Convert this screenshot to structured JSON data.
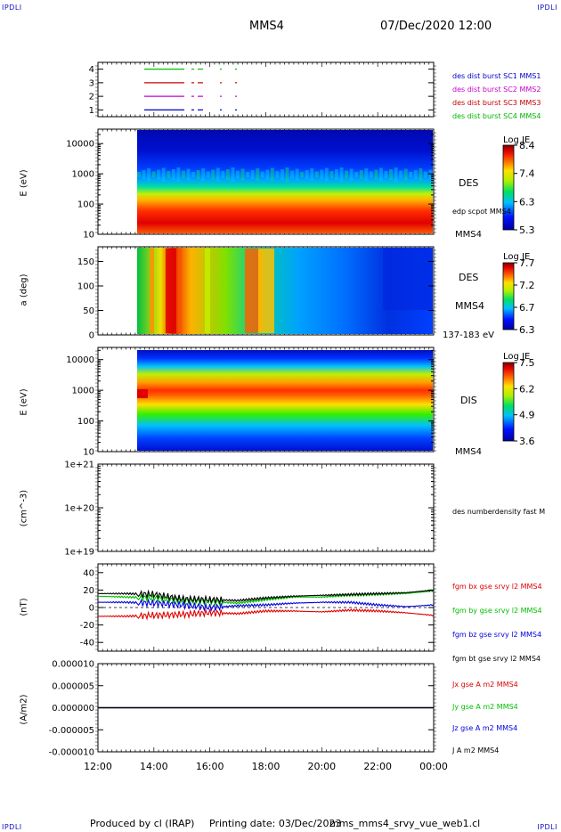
{
  "header": {
    "corner_tl": "IPDLI",
    "corner_tr": "IPDLI",
    "corner_bl": "IPDLI",
    "corner_br": "IPDLI",
    "spacecraft": "MMS4",
    "datetime": "07/Dec/2020 12:00"
  },
  "footer": {
    "producer": "Produced by cl (IRAP)",
    "printing": "Printing date: 03/Dec/2023",
    "script": "mms_mms4_srvy_vue_web1.cl"
  },
  "colors": {
    "mms1": "#0000c8",
    "mms2": "#c800c8",
    "mms3": "#c80000",
    "mms4": "#00b400",
    "bx": "#e00000",
    "by": "#00c000",
    "bz": "#0000e0",
    "bt": "#000000"
  },
  "chart_data": [
    {
      "type": "line",
      "panel": "burst",
      "ylim": [
        0.5,
        4.5
      ],
      "yticks": [
        "1",
        "2",
        "3",
        "4"
      ],
      "series": [
        {
          "name": "des dist burst SC1 MMS1",
          "level": 4,
          "color": "#00c000"
        },
        {
          "name": "des dist burst SC2 MMS2",
          "level": 3,
          "color": "#c80000"
        },
        {
          "name": "des dist burst SC3 MMS3",
          "level": 2,
          "color": "#c800c8"
        },
        {
          "name": "des dist burst SC4 MMS4",
          "level": 1,
          "color": "#0000c8"
        }
      ],
      "legend_colors": [
        "#0000c8",
        "#c800c8",
        "#c80000",
        "#00b400"
      ]
    },
    {
      "type": "heatmap",
      "panel": "des_energy",
      "ylabel": "E (eV)",
      "yscale": "log",
      "ylim": [
        10,
        30000
      ],
      "yticks": [
        "10",
        "100",
        "1000",
        "10000"
      ],
      "label": "DES",
      "side_label": "edp scpot MMS4",
      "bottom_label": "MMS4",
      "colorbar": {
        "title": "Log JE",
        "ticks": [
          "8.4",
          "7.4",
          "6.3",
          "5.3"
        ]
      }
    },
    {
      "type": "heatmap",
      "panel": "des_pitch",
      "ylabel": "a (deg)",
      "ylim": [
        0,
        180
      ],
      "yticks": [
        "0",
        "50",
        "100",
        "150"
      ],
      "label": "DES",
      "side_label": "MMS4",
      "bottom_label": "137-183 eV",
      "colorbar": {
        "title": "Log JE",
        "ticks": [
          "7.7",
          "7.2",
          "6.7",
          "6.3"
        ]
      }
    },
    {
      "type": "heatmap",
      "panel": "dis_energy",
      "ylabel": "E (eV)",
      "yscale": "log",
      "ylim": [
        10,
        25000
      ],
      "yticks": [
        "10",
        "100",
        "1000",
        "10000"
      ],
      "label": "DIS",
      "bottom_label": "MMS4",
      "colorbar": {
        "title": "Log JE",
        "ticks": [
          "7.5",
          "6.2",
          "4.9",
          "3.6"
        ]
      }
    },
    {
      "type": "line",
      "panel": "density",
      "ylabel": "(cm^-3)",
      "yscale": "log",
      "ylim": [
        1e+19,
        1e+21
      ],
      "yticks": [
        "1e+19",
        "1e+20",
        "1e+21"
      ],
      "series": [
        {
          "name": "des numberdensity fast M",
          "values": []
        }
      ]
    },
    {
      "type": "line",
      "panel": "fgm",
      "ylabel": "(nT)",
      "ylim": [
        -50,
        50
      ],
      "yticks": [
        "-40",
        "-20",
        "0",
        "20",
        "40"
      ],
      "x": [
        12,
        13,
        14,
        15,
        16,
        17,
        18,
        19,
        20,
        21,
        22,
        23,
        24
      ],
      "series": [
        {
          "name": "fgm bx gse srvy l2 MMS4",
          "color": "#e00000",
          "values": [
            -10,
            -10,
            -9,
            -8,
            -6,
            -7,
            -4,
            -4,
            -5,
            -3,
            -4,
            -6,
            -9
          ]
        },
        {
          "name": "fgm by gse srvy l2 MMS4",
          "color": "#00c000",
          "values": [
            13,
            12,
            11,
            8,
            7,
            5,
            9,
            12,
            12,
            14,
            15,
            16,
            19
          ]
        },
        {
          "name": "fgm bz gse srvy l2 MMS4",
          "color": "#0000e0",
          "values": [
            6,
            6,
            5,
            3,
            0,
            2,
            3,
            5,
            6,
            6,
            3,
            1,
            3
          ]
        },
        {
          "name": "fgm bt gse srvy l2 MMS4",
          "color": "#000000",
          "values": [
            16,
            16,
            15,
            10,
            9,
            8,
            11,
            13,
            14,
            15,
            16,
            17,
            20
          ]
        }
      ]
    },
    {
      "type": "line",
      "panel": "current",
      "ylabel": "(A/m2)",
      "ylim": [
        -1e-05,
        1e-05
      ],
      "yticks": [
        "-0.000010",
        "-0.000005",
        "0.000000",
        "0.000005",
        "0.000010"
      ],
      "xlabel_ticks": [
        "12:00",
        "14:00",
        "16:00",
        "18:00",
        "20:00",
        "22:00",
        "00:00"
      ],
      "xlim": [
        12,
        24
      ],
      "series": [
        {
          "name": "Jx gse A m2 MMS4",
          "color": "#e00000",
          "values": [
            0,
            0
          ]
        },
        {
          "name": "Jy gse A m2 MMS4",
          "color": "#00c000",
          "values": [
            0,
            0
          ]
        },
        {
          "name": "Jz gse A m2 MMS4",
          "color": "#0000e0",
          "values": [
            0,
            0
          ]
        },
        {
          "name": "J A m2 MMS4",
          "color": "#000000",
          "values": [
            0,
            0
          ]
        }
      ]
    }
  ]
}
